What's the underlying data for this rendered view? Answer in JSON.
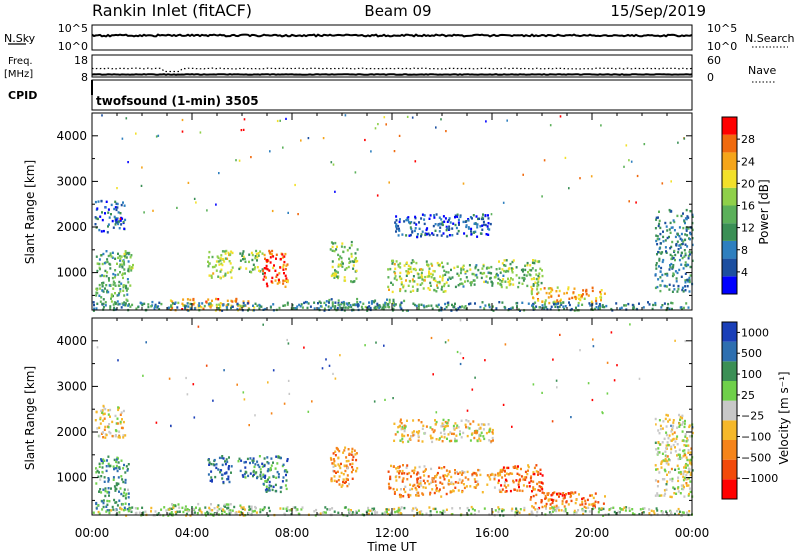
{
  "header": {
    "station": "Rankin Inlet (fitACF)",
    "beam": "Beam 09",
    "date": "15/Sep/2019"
  },
  "nsky_panel": {
    "left_label": "N.Sky",
    "right_label": "N.Search",
    "left_ticks": [
      "10^5",
      "10^0"
    ],
    "right_ticks": [
      "10^5",
      "10^0"
    ]
  },
  "freq_panel": {
    "left_label_line1": "Freq.",
    "left_label_line2": "[MHz]",
    "right_label": "Nave",
    "left_ticks": [
      "18",
      "8"
    ],
    "right_ticks": [
      "60",
      "0"
    ]
  },
  "cpid": {
    "label": "CPID",
    "text": "twofsound (1-min) 3505"
  },
  "chart_data": [
    {
      "type": "heatmap",
      "name": "power",
      "ylabel": "Slant Range [km]",
      "ylim": [
        180,
        4500
      ],
      "yticks": [
        1000,
        2000,
        3000,
        4000
      ],
      "xlim": [
        0,
        24
      ],
      "colorbar": {
        "label": "Power [dB]",
        "range": [
          0,
          32
        ],
        "ticks": [
          "28",
          "24",
          "20",
          "16",
          "12",
          "8",
          "4"
        ],
        "colors": [
          "#0000ff",
          "#1c4fa0",
          "#2e7fbf",
          "#3a8f55",
          "#5bb05a",
          "#8fd04a",
          "#f2e02a",
          "#f5a51a",
          "#f06a0e",
          "#ff0000"
        ]
      },
      "clusters": [
        {
          "t": [
            0.1,
            1.5
          ],
          "r": [
            300,
            1500
          ],
          "level": 0.4
        },
        {
          "t": [
            1.0,
            1.6
          ],
          "r": [
            1000,
            1500
          ],
          "level": 0.5
        },
        {
          "t": [
            0.1,
            1.3
          ],
          "r": [
            1900,
            2600
          ],
          "level": 0.2
        },
        {
          "t": [
            4.6,
            5.6
          ],
          "r": [
            900,
            1500
          ],
          "level": 0.55
        },
        {
          "t": [
            5.8,
            6.8
          ],
          "r": [
            1000,
            1500
          ],
          "level": 0.5
        },
        {
          "t": [
            6.8,
            7.8
          ],
          "r": [
            700,
            1500
          ],
          "level": 0.85
        },
        {
          "t": [
            9.5,
            10.6
          ],
          "r": [
            800,
            1700
          ],
          "level": 0.5
        },
        {
          "t": [
            11.8,
            14.2
          ],
          "r": [
            600,
            1300
          ],
          "level": 0.55
        },
        {
          "t": [
            14.2,
            16.5
          ],
          "r": [
            700,
            1200
          ],
          "level": 0.45
        },
        {
          "t": [
            16.2,
            18.0
          ],
          "r": [
            700,
            1300
          ],
          "level": 0.5
        },
        {
          "t": [
            17.5,
            20.5
          ],
          "r": [
            350,
            700
          ],
          "level": 0.7
        },
        {
          "t": [
            3.0,
            6.5
          ],
          "r": [
            190,
            450
          ],
          "level": 0.75
        },
        {
          "t": [
            0.0,
            24.0
          ],
          "r": [
            190,
            380
          ],
          "level": 0.3
        },
        {
          "t": [
            9.0,
            12.5
          ],
          "r": [
            200,
            450
          ],
          "level": 0.35
        },
        {
          "t": [
            12.0,
            16.0
          ],
          "r": [
            1800,
            2300
          ],
          "level": 0.2
        },
        {
          "t": [
            22.5,
            24.0
          ],
          "r": [
            600,
            2400
          ],
          "level": 0.3
        }
      ]
    },
    {
      "type": "heatmap",
      "name": "velocity",
      "ylabel": "Slant Range [km]",
      "xlabel": "Time UT",
      "ylim": [
        180,
        4500
      ],
      "yticks": [
        1000,
        2000,
        3000,
        4000
      ],
      "xlim": [
        0,
        24
      ],
      "xticks": [
        "00:00",
        "04:00",
        "08:00",
        "12:00",
        "16:00",
        "20:00",
        "00:00"
      ],
      "colorbar": {
        "label": "Velocity [m s⁻¹]",
        "ticks": [
          "1000",
          "500",
          "100",
          "25",
          "−25",
          "−100",
          "−500",
          "−1000"
        ],
        "colors": [
          "#ff0000",
          "#f24a0a",
          "#f5841a",
          "#f5b82a",
          "#c8c8c8",
          "#6fd04a",
          "#3b8f55",
          "#2e6fb0",
          "#1a3fb8"
        ]
      },
      "clusters": [
        {
          "t": [
            0.1,
            1.5
          ],
          "r": [
            300,
            1500
          ],
          "level": 0.72
        },
        {
          "t": [
            0.1,
            1.3
          ],
          "r": [
            1900,
            2600
          ],
          "level": 0.45
        },
        {
          "t": [
            4.6,
            5.6
          ],
          "r": [
            900,
            1500
          ],
          "level": 0.85
        },
        {
          "t": [
            5.8,
            6.8
          ],
          "r": [
            1000,
            1500
          ],
          "level": 0.8
        },
        {
          "t": [
            6.8,
            7.8
          ],
          "r": [
            700,
            1500
          ],
          "level": 0.75
        },
        {
          "t": [
            9.5,
            10.6
          ],
          "r": [
            800,
            1700
          ],
          "level": 0.3
        },
        {
          "t": [
            11.8,
            14.2
          ],
          "r": [
            600,
            1300
          ],
          "level": 0.3
        },
        {
          "t": [
            14.2,
            16.5
          ],
          "r": [
            700,
            1200
          ],
          "level": 0.35
        },
        {
          "t": [
            16.2,
            18.0
          ],
          "r": [
            700,
            1300
          ],
          "level": 0.2
        },
        {
          "t": [
            17.5,
            20.5
          ],
          "r": [
            350,
            700
          ],
          "level": 0.25
        },
        {
          "t": [
            3.0,
            6.5
          ],
          "r": [
            190,
            450
          ],
          "level": 0.6
        },
        {
          "t": [
            0.0,
            24.0
          ],
          "r": [
            190,
            380
          ],
          "level": 0.55
        },
        {
          "t": [
            12.0,
            16.0
          ],
          "r": [
            1800,
            2300
          ],
          "level": 0.45
        },
        {
          "t": [
            22.5,
            24.0
          ],
          "r": [
            600,
            2400
          ],
          "level": 0.5
        }
      ]
    }
  ]
}
